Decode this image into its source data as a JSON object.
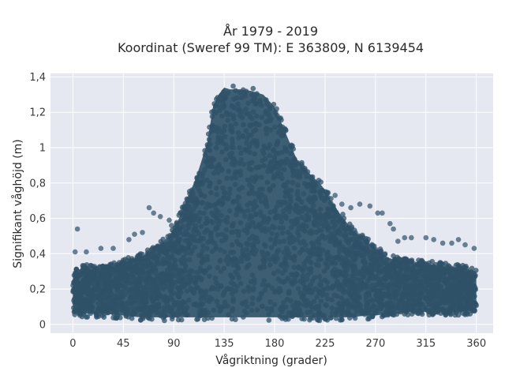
{
  "chart_data": {
    "type": "scatter",
    "title_line1": "År 1979 - 2019",
    "title_line2": "Koordinat (Sweref 99 TM): E 363809, N 6139454",
    "xlabel": "Vågriktning (grader)",
    "ylabel": "Signifikant våghöjd (m)",
    "xlim": [
      -20,
      375
    ],
    "ylim": [
      -0.05,
      1.42
    ],
    "x_ticks": [
      0,
      45,
      90,
      135,
      180,
      225,
      270,
      315,
      360
    ],
    "x_tick_labels": [
      "0",
      "45",
      "90",
      "135",
      "180",
      "225",
      "270",
      "315",
      "360"
    ],
    "y_ticks": [
      0,
      0.2,
      0.4,
      0.6,
      0.8,
      1.0,
      1.2,
      1.4
    ],
    "y_tick_labels": [
      "0",
      "0,2",
      "0,4",
      "0,6",
      "0,8",
      "1",
      "1,2",
      "1,4"
    ],
    "grid": true,
    "marker_color": "#2f5168",
    "background_color": "#e5e8f0",
    "envelope": {
      "x": [
        0,
        10,
        20,
        30,
        45,
        60,
        75,
        90,
        100,
        110,
        120,
        125,
        130,
        135,
        140,
        150,
        160,
        170,
        180,
        190,
        200,
        210,
        220,
        225,
        230,
        240,
        250,
        260,
        270,
        280,
        290,
        300,
        315,
        330,
        345,
        360
      ],
      "y_max": [
        0.32,
        0.34,
        0.33,
        0.34,
        0.37,
        0.4,
        0.45,
        0.55,
        0.7,
        0.85,
        1.05,
        1.25,
        1.32,
        1.36,
        1.35,
        1.35,
        1.34,
        1.32,
        1.25,
        1.1,
        0.95,
        0.88,
        0.82,
        0.78,
        0.72,
        0.63,
        0.55,
        0.5,
        0.45,
        0.4,
        0.38,
        0.37,
        0.36,
        0.35,
        0.34,
        0.32
      ],
      "y_min": [
        0.05,
        0.04,
        0.04,
        0.04,
        0.03,
        0.02,
        0.02,
        0.02,
        0.02,
        0.02,
        0.02,
        0.02,
        0.02,
        0.02,
        0.02,
        0.02,
        0.02,
        0.02,
        0.02,
        0.02,
        0.02,
        0.02,
        0.02,
        0.02,
        0.02,
        0.02,
        0.02,
        0.03,
        0.03,
        0.04,
        0.04,
        0.05,
        0.05,
        0.05,
        0.05,
        0.06
      ]
    },
    "outliers": [
      [
        4,
        0.54
      ],
      [
        2,
        0.41
      ],
      [
        12,
        0.41
      ],
      [
        25,
        0.43
      ],
      [
        36,
        0.43
      ],
      [
        50,
        0.48
      ],
      [
        55,
        0.51
      ],
      [
        62,
        0.52
      ],
      [
        68,
        0.66
      ],
      [
        72,
        0.63
      ],
      [
        78,
        0.61
      ],
      [
        86,
        0.59
      ],
      [
        88,
        0.56
      ],
      [
        96,
        0.63
      ],
      [
        100,
        0.66
      ],
      [
        104,
        0.71
      ],
      [
        110,
        0.8
      ],
      [
        118,
        0.96
      ],
      [
        124,
        1.12
      ],
      [
        234,
        0.73
      ],
      [
        240,
        0.68
      ],
      [
        248,
        0.66
      ],
      [
        256,
        0.68
      ],
      [
        265,
        0.67
      ],
      [
        272,
        0.63
      ],
      [
        276,
        0.63
      ],
      [
        283,
        0.57
      ],
      [
        286,
        0.54
      ],
      [
        290,
        0.47
      ],
      [
        296,
        0.49
      ],
      [
        302,
        0.49
      ],
      [
        315,
        0.49
      ],
      [
        322,
        0.48
      ],
      [
        330,
        0.46
      ],
      [
        338,
        0.46
      ],
      [
        344,
        0.48
      ],
      [
        350,
        0.45
      ],
      [
        358,
        0.43
      ]
    ]
  }
}
